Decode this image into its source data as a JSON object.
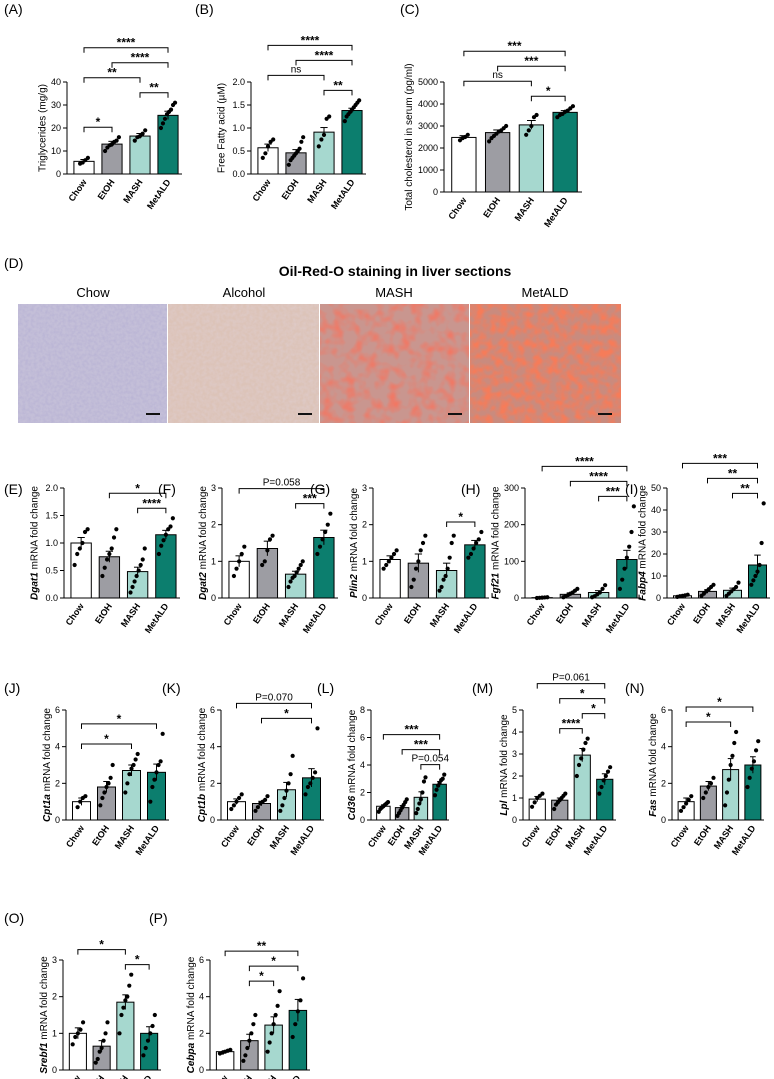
{
  "colors": {
    "Chow": "#ffffff",
    "EtOH": "#9d9da3",
    "MASH": "#a6d8cf",
    "MetALD": "#0c7e6e",
    "axis": "#000000",
    "scalebar": "#111111"
  },
  "staining": {
    "letter": "(D)",
    "title": "Oil-Red-O staining in liver sections",
    "panels": [
      {
        "label": "Chow",
        "style": "chow-tissue"
      },
      {
        "label": "Alcohol",
        "style": "alcohol-tissue"
      },
      {
        "label": "MASH",
        "style": "mash-tissue"
      },
      {
        "label": "MetALD",
        "style": "metald-tissue"
      }
    ]
  },
  "chart_data": [
    {
      "letter": "(A)",
      "type": "bar",
      "ylabel": "Triglycerides (mg/g)",
      "ylabel_prefix": "",
      "ylabel_gene": "",
      "ylim": [
        0,
        40
      ],
      "yticks": [
        0,
        10,
        20,
        30,
        40
      ],
      "categories": [
        "Chow",
        "EtOH",
        "MASH",
        "MetALD"
      ],
      "values": [
        5.5,
        13,
        16.5,
        25.5
      ],
      "errors": [
        0.8,
        1.2,
        1.1,
        1.8
      ],
      "points": [
        [
          4.5,
          5,
          6,
          7
        ],
        [
          10,
          11.5,
          12.5,
          13,
          14,
          14.5,
          16
        ],
        [
          14.5,
          16,
          16.5,
          17.5,
          19
        ],
        [
          20,
          22,
          24,
          26,
          27,
          28,
          30,
          31
        ]
      ],
      "comparisons": [
        {
          "from": 0,
          "to": 1,
          "label": "*"
        },
        {
          "from": 2,
          "to": 3,
          "label": "**"
        },
        {
          "from": 0,
          "to": 2,
          "label": "**"
        },
        {
          "from": 1,
          "to": 3,
          "label": "****"
        },
        {
          "from": 0,
          "to": 3,
          "label": "****"
        }
      ]
    },
    {
      "letter": "(B)",
      "type": "bar",
      "ylabel": "Free Fatty acid (µM)",
      "ylabel_prefix": "",
      "ylabel_gene": "",
      "ylim": [
        0,
        2.0
      ],
      "yticks": [
        "0.0",
        "0.5",
        "1.0",
        "1.5",
        "2.0"
      ],
      "categories": [
        "Chow",
        "EtOH",
        "MASH",
        "MetALD"
      ],
      "values": [
        0.57,
        0.46,
        0.91,
        1.38
      ],
      "errors": [
        0.08,
        0.07,
        0.1,
        0.05
      ],
      "points": [
        [
          0.35,
          0.45,
          0.6,
          0.7,
          0.75
        ],
        [
          0.2,
          0.3,
          0.35,
          0.4,
          0.45,
          0.5,
          0.55,
          0.7,
          0.8
        ],
        [
          0.6,
          0.75,
          0.85,
          1.2,
          1.25
        ],
        [
          1.15,
          1.25,
          1.3,
          1.35,
          1.4,
          1.45,
          1.5,
          1.55,
          1.6
        ]
      ],
      "comparisons": [
        {
          "from": 0,
          "to": 2,
          "label": "ns"
        },
        {
          "from": 2,
          "to": 3,
          "label": "**"
        },
        {
          "from": 1,
          "to": 3,
          "label": "****"
        },
        {
          "from": 0,
          "to": 3,
          "label": "****"
        }
      ]
    },
    {
      "letter": "(C)",
      "type": "bar",
      "ylabel": "Total cholesterol in serum (pg/ml)",
      "ylabel_prefix": "",
      "ylabel_gene": "",
      "ylim": [
        0,
        5000
      ],
      "yticks": [
        0,
        1000,
        2000,
        3000,
        4000,
        5000
      ],
      "categories": [
        "Chow",
        "EtOH",
        "MASH",
        "MetALD"
      ],
      "values": [
        2480,
        2700,
        3050,
        3620
      ],
      "errors": [
        80,
        120,
        200,
        80
      ],
      "points": [
        [
          2350,
          2450,
          2500,
          2600
        ],
        [
          2300,
          2450,
          2550,
          2650,
          2750,
          2800,
          2900,
          3000
        ],
        [
          2600,
          2800,
          3000,
          3400,
          3500
        ],
        [
          3400,
          3500,
          3550,
          3650,
          3700,
          3800,
          3900
        ]
      ],
      "comparisons": [
        {
          "from": 0,
          "to": 2,
          "label": "ns"
        },
        {
          "from": 2,
          "to": 3,
          "label": "*"
        },
        {
          "from": 1,
          "to": 3,
          "label": "***"
        },
        {
          "from": 0,
          "to": 3,
          "label": "***"
        }
      ]
    },
    {
      "letter": "(E)",
      "type": "bar",
      "ylabel": "mRNA fold change",
      "ylabel_prefix": "",
      "ylabel_gene": "Dgat1",
      "ylim": [
        0,
        2.0
      ],
      "yticks": [
        "0.0",
        "0.5",
        "1.0",
        "1.5",
        "2.0"
      ],
      "categories": [
        "Chow",
        "EtOH",
        "MASH",
        "MetALD"
      ],
      "values": [
        1.0,
        0.75,
        0.48,
        1.15
      ],
      "errors": [
        0.1,
        0.1,
        0.08,
        0.08
      ],
      "points": [
        [
          0.6,
          0.8,
          0.9,
          1.0,
          1.2,
          1.25
        ],
        [
          0.4,
          0.55,
          0.7,
          0.8,
          0.9,
          1.1,
          1.25
        ],
        [
          0.1,
          0.2,
          0.3,
          0.4,
          0.5,
          0.6,
          0.7,
          0.9
        ],
        [
          0.8,
          0.95,
          1.05,
          1.15,
          1.25,
          1.3,
          1.45
        ]
      ],
      "comparisons": [
        {
          "from": 2,
          "to": 3,
          "label": "****"
        },
        {
          "from": 1,
          "to": 3,
          "label": "*"
        }
      ]
    },
    {
      "letter": "(F)",
      "type": "bar",
      "ylabel": "mRNA fold change",
      "ylabel_prefix": "",
      "ylabel_gene": "Dgat2",
      "ylim": [
        0,
        3
      ],
      "yticks": [
        0,
        1,
        2,
        3
      ],
      "categories": [
        "Chow",
        "EtOH",
        "MASH",
        "MetALD"
      ],
      "values": [
        1.0,
        1.35,
        0.65,
        1.65
      ],
      "errors": [
        0.15,
        0.2,
        0.08,
        0.2
      ],
      "points": [
        [
          0.6,
          0.8,
          1.0,
          1.2,
          1.4
        ],
        [
          0.9,
          1.0,
          1.3,
          1.6,
          1.7
        ],
        [
          0.3,
          0.45,
          0.55,
          0.6,
          0.7,
          0.8,
          0.9,
          1.0
        ],
        [
          1.2,
          1.4,
          1.6,
          1.8,
          2.0,
          2.3
        ]
      ],
      "comparisons": [
        {
          "from": 2,
          "to": 3,
          "label": "***"
        },
        {
          "from": 0,
          "to": 3,
          "label": "P=0.058"
        }
      ]
    },
    {
      "letter": "(G)",
      "type": "bar",
      "ylabel": "mRNA fold change",
      "ylabel_prefix": "",
      "ylabel_gene": "Plin2",
      "ylim": [
        0,
        3
      ],
      "yticks": [
        0,
        1,
        2,
        3
      ],
      "categories": [
        "Chow",
        "EtOH",
        "MASH",
        "MetALD"
      ],
      "values": [
        1.05,
        0.95,
        0.75,
        1.45
      ],
      "errors": [
        0.1,
        0.25,
        0.2,
        0.12
      ],
      "points": [
        [
          0.8,
          0.9,
          1.0,
          1.1,
          1.2,
          1.3
        ],
        [
          0.3,
          0.5,
          0.8,
          1.0,
          1.3,
          1.5,
          1.7
        ],
        [
          0.2,
          0.3,
          0.5,
          0.6,
          0.8,
          1.1,
          1.5,
          1.7
        ],
        [
          1.1,
          1.2,
          1.35,
          1.5,
          1.6,
          1.8
        ]
      ],
      "comparisons": [
        {
          "from": 2,
          "to": 3,
          "label": "*"
        }
      ]
    },
    {
      "letter": "(H)",
      "type": "bar",
      "ylabel": "mRNA fold change",
      "ylabel_prefix": "",
      "ylabel_gene": "Fgf21",
      "ylim": [
        0,
        300
      ],
      "yticks": [
        0,
        100,
        200,
        300
      ],
      "categories": [
        "Chow",
        "EtOH",
        "MASH",
        "MetALD"
      ],
      "values": [
        1,
        10,
        15,
        105
      ],
      "errors": [
        1,
        4,
        5,
        25
      ],
      "points": [
        [
          0,
          0.5,
          1,
          1.5,
          2
        ],
        [
          2,
          5,
          8,
          12,
          15,
          20,
          25
        ],
        [
          2,
          5,
          10,
          15,
          25,
          35
        ],
        [
          25,
          50,
          80,
          110,
          140,
          180,
          250
        ]
      ],
      "comparisons": [
        {
          "from": 2,
          "to": 3,
          "label": "***"
        },
        {
          "from": 1,
          "to": 3,
          "label": "****"
        },
        {
          "from": 0,
          "to": 3,
          "label": "****"
        }
      ]
    },
    {
      "letter": "(I)",
      "type": "bar",
      "ylabel": "mRNA fold change",
      "ylabel_prefix": "",
      "ylabel_gene": "Fabp4",
      "ylim": [
        0,
        50
      ],
      "yticks": [
        0,
        10,
        20,
        30,
        40,
        50
      ],
      "categories": [
        "Chow",
        "EtOH",
        "MASH",
        "MetALD"
      ],
      "values": [
        1,
        3,
        3.5,
        15
      ],
      "errors": [
        0.3,
        0.8,
        1,
        4.5
      ],
      "points": [
        [
          0.5,
          0.8,
          1,
          1.2,
          1.5
        ],
        [
          1,
          2,
          3,
          4,
          5,
          6
        ],
        [
          1,
          2,
          3,
          4,
          5,
          7
        ],
        [
          6,
          8,
          10,
          12,
          15,
          25,
          43
        ]
      ],
      "comparisons": [
        {
          "from": 2,
          "to": 3,
          "label": "**"
        },
        {
          "from": 1,
          "to": 3,
          "label": "**"
        },
        {
          "from": 0,
          "to": 3,
          "label": "***"
        }
      ]
    },
    {
      "letter": "(J)",
      "type": "bar",
      "ylabel": "mRNA fold change",
      "ylabel_prefix": "",
      "ylabel_gene": "Cpt1a",
      "ylim": [
        0,
        6
      ],
      "yticks": [
        0,
        2,
        4,
        6
      ],
      "categories": [
        "Chow",
        "EtOH",
        "MASH",
        "MetALD"
      ],
      "values": [
        1.0,
        1.8,
        2.7,
        2.6
      ],
      "errors": [
        0.2,
        0.3,
        0.3,
        0.45
      ],
      "points": [
        [
          0.7,
          1.0,
          1.2,
          1.3
        ],
        [
          0.8,
          1.2,
          1.5,
          1.8,
          2.0,
          2.3,
          3.0
        ],
        [
          1.5,
          2.0,
          2.5,
          2.8,
          3.0,
          3.3,
          3.6
        ],
        [
          1.0,
          1.8,
          2.2,
          2.6,
          3.0,
          3.2,
          4.7
        ]
      ],
      "comparisons": [
        {
          "from": 0,
          "to": 2,
          "label": "*"
        },
        {
          "from": 0,
          "to": 3,
          "label": "*"
        }
      ]
    },
    {
      "letter": "(K)",
      "type": "bar",
      "ylabel": "mRNA fold change",
      "ylabel_prefix": "",
      "ylabel_gene": "Cpt1b",
      "ylim": [
        0,
        6
      ],
      "yticks": [
        0,
        2,
        4,
        6
      ],
      "categories": [
        "Chow",
        "EtOH",
        "MASH",
        "MetALD"
      ],
      "values": [
        1.0,
        0.9,
        1.65,
        2.3
      ],
      "errors": [
        0.15,
        0.12,
        0.4,
        0.5
      ],
      "points": [
        [
          0.6,
          0.8,
          1.0,
          1.2,
          1.4
        ],
        [
          0.5,
          0.7,
          0.9,
          1.0,
          1.1,
          1.3
        ],
        [
          0.5,
          0.8,
          1.2,
          1.6,
          2.0,
          2.5,
          3.5
        ],
        [
          1.4,
          1.8,
          2.0,
          2.3,
          2.6,
          5.0
        ]
      ],
      "comparisons": [
        {
          "from": 1,
          "to": 3,
          "label": "*"
        },
        {
          "from": 0,
          "to": 3,
          "label": "P=0.070"
        }
      ]
    },
    {
      "letter": "(L)",
      "type": "bar",
      "ylabel": "mRNA fold change",
      "ylabel_prefix": "",
      "ylabel_gene": "Cd36",
      "ylim": [
        0,
        8
      ],
      "yticks": [
        0,
        2,
        4,
        6,
        8
      ],
      "categories": [
        "Chow",
        "EtOH",
        "MASH",
        "MetALD"
      ],
      "values": [
        1.0,
        0.9,
        1.65,
        2.6
      ],
      "errors": [
        0.1,
        0.15,
        0.4,
        0.2
      ],
      "points": [
        [
          0.6,
          0.8,
          0.9,
          1.0,
          1.1,
          1.2,
          1.3
        ],
        [
          0.3,
          0.5,
          0.7,
          0.9,
          1.1,
          1.3,
          1.5
        ],
        [
          0.5,
          0.8,
          1.2,
          1.5,
          2.0,
          2.8,
          3.1
        ],
        [
          1.8,
          2.2,
          2.5,
          2.7,
          2.9,
          3.0,
          3.3
        ]
      ],
      "comparisons": [
        {
          "from": 2,
          "to": 3,
          "label": "P=0.054"
        },
        {
          "from": 1,
          "to": 3,
          "label": "***"
        },
        {
          "from": 0,
          "to": 3,
          "label": "***"
        }
      ]
    },
    {
      "letter": "(M)",
      "type": "bar",
      "ylabel": "mRNA fold change",
      "ylabel_prefix": "",
      "ylabel_gene": "Lpl",
      "ylim": [
        0,
        5
      ],
      "yticks": [
        0,
        1,
        2,
        3,
        4,
        5
      ],
      "categories": [
        "Chow",
        "EtOH",
        "MASH",
        "MetALD"
      ],
      "values": [
        0.95,
        0.9,
        2.95,
        1.85
      ],
      "errors": [
        0.12,
        0.1,
        0.3,
        0.25
      ],
      "points": [
        [
          0.6,
          0.8,
          1.0,
          1.1,
          1.2
        ],
        [
          0.5,
          0.7,
          0.8,
          0.9,
          1.0,
          1.1,
          1.2
        ],
        [
          2.0,
          2.5,
          2.8,
          3.2,
          3.5,
          3.7
        ],
        [
          1.2,
          1.5,
          1.8,
          2.0,
          2.2,
          2.4
        ]
      ],
      "comparisons": [
        {
          "from": 1,
          "to": 2,
          "label": "****"
        },
        {
          "from": 2,
          "to": 3,
          "label": "*"
        },
        {
          "from": 1,
          "to": 3,
          "label": "*"
        },
        {
          "from": 0,
          "to": 3,
          "label": "P=0.061"
        }
      ]
    },
    {
      "letter": "(N)",
      "type": "bar",
      "ylabel": "mRNA fold change",
      "ylabel_prefix": "",
      "ylabel_gene": "Fas",
      "ylim": [
        0,
        6
      ],
      "yticks": [
        0,
        2,
        4,
        6
      ],
      "categories": [
        "Chow",
        "EtOH",
        "MASH",
        "MetALD"
      ],
      "values": [
        1.0,
        1.85,
        2.75,
        3.0
      ],
      "errors": [
        0.2,
        0.25,
        0.6,
        0.45
      ],
      "points": [
        [
          0.5,
          0.7,
          0.9,
          1.1,
          1.3
        ],
        [
          1.2,
          1.5,
          1.8,
          2.0,
          2.3
        ],
        [
          0.8,
          1.5,
          2.2,
          3.0,
          3.5,
          4.2,
          4.8
        ],
        [
          1.8,
          2.3,
          2.8,
          3.2,
          3.8,
          4.3
        ]
      ],
      "comparisons": [
        {
          "from": 0,
          "to": 2,
          "label": "*"
        },
        {
          "from": 0,
          "to": 3,
          "label": "*"
        }
      ]
    },
    {
      "letter": "(O)",
      "type": "bar",
      "ylabel": "mRNA fold change",
      "ylabel_prefix": "",
      "ylabel_gene": "Srebf1",
      "ylim": [
        0,
        3
      ],
      "yticks": [
        0,
        1,
        2,
        3
      ],
      "categories": [
        "Chow",
        "EtOH",
        "MASH",
        "MetALD"
      ],
      "values": [
        1.0,
        0.65,
        1.85,
        1.0
      ],
      "errors": [
        0.15,
        0.15,
        0.2,
        0.18
      ],
      "points": [
        [
          0.7,
          0.9,
          1.0,
          1.1,
          1.3
        ],
        [
          0.2,
          0.3,
          0.5,
          0.6,
          0.8,
          1.0,
          1.3
        ],
        [
          1.0,
          1.5,
          1.7,
          1.9,
          2.0,
          2.3,
          2.6
        ],
        [
          0.4,
          0.6,
          0.8,
          1.0,
          1.2,
          1.5
        ]
      ],
      "comparisons": [
        {
          "from": 0,
          "to": 2,
          "label": "*"
        },
        {
          "from": 2,
          "to": 3,
          "label": "*"
        }
      ]
    },
    {
      "letter": "(P)",
      "type": "bar",
      "ylabel": "mRNA fold change",
      "ylabel_prefix": "",
      "ylabel_gene": "Cebpa",
      "ylim": [
        0,
        6
      ],
      "yticks": [
        0,
        2,
        4,
        6
      ],
      "categories": [
        "Chow",
        "EtOH",
        "MASH",
        "MetALD"
      ],
      "values": [
        1.0,
        1.6,
        2.45,
        3.25
      ],
      "errors": [
        0.05,
        0.35,
        0.45,
        0.6
      ],
      "points": [
        [
          0.9,
          0.95,
          1.0,
          1.05,
          1.1
        ],
        [
          0.5,
          0.8,
          1.2,
          1.6,
          2.0,
          2.5,
          3.0
        ],
        [
          1.0,
          1.5,
          2.0,
          2.5,
          3.0,
          3.5,
          4.3
        ],
        [
          1.8,
          2.5,
          3.2,
          3.8,
          5.0
        ]
      ],
      "comparisons": [
        {
          "from": 1,
          "to": 2,
          "label": "*"
        },
        {
          "from": 1,
          "to": 3,
          "label": "*"
        },
        {
          "from": 0,
          "to": 3,
          "label": "**"
        }
      ]
    }
  ]
}
